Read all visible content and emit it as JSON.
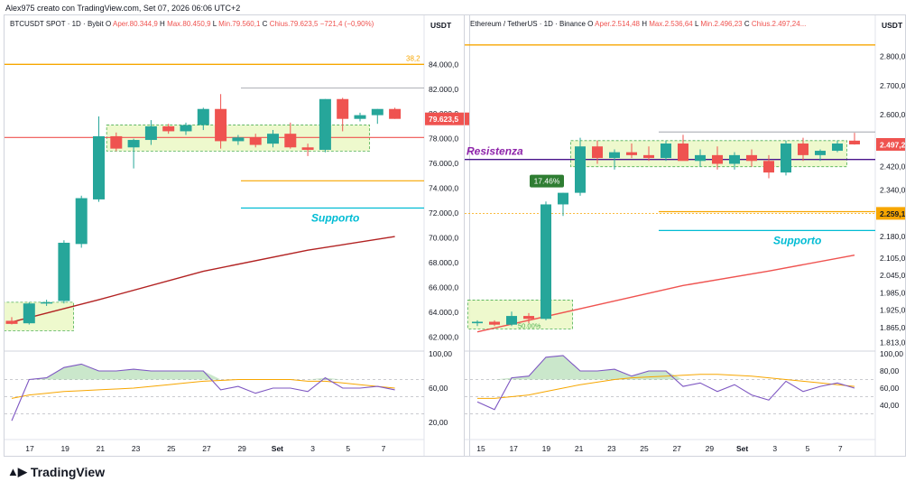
{
  "author_line": "Alex975 creato con TradingView.com, Set 07, 2026 06:06 UTC+2",
  "brand": "TradingView",
  "colors": {
    "up": "#26a69a",
    "down": "#ef5350",
    "ma": "#b22222",
    "ma2": "#ef5350",
    "orange": "#f7a600",
    "cyan": "#00bcd4",
    "rsi": "#7e57c2",
    "rsi_ma": "#f7a600",
    "zone": "#eaf7c0",
    "zone_border": "#4caf50"
  },
  "charts": [
    {
      "id": "btc",
      "legend": {
        "symbol": "BTCUSDT SPOT · 1D · Bybit",
        "o_label": "O",
        "o": "Aper.80.344,9",
        "h_label": "H",
        "h": "Max.80.450,9",
        "l_label": "L",
        "l": "Min.79.560,1",
        "c_label": "C",
        "c": "Chius.79.623,5",
        "chg": "−721,4 (−0,90%)"
      },
      "currency": "USDT",
      "price_ticks": [
        "84.000,0",
        "82.000,0",
        "80.000,0",
        "78.000,0",
        "76.000,0",
        "74.000,0",
        "72.000,0",
        "70.000,0",
        "68.000,0",
        "66.000,0",
        "64.000,0",
        "62.000,0"
      ],
      "price_tag": "79.623,5",
      "orange_label": "38,2",
      "support_label": "Supporto",
      "rsi_ticks": [
        "100,00",
        "60,00",
        "20,00"
      ],
      "x_ticks": [
        "17",
        "19",
        "21",
        "23",
        "25",
        "27",
        "29",
        "Set",
        "3",
        "5",
        "7"
      ],
      "chart_data": {
        "type": "candlestick",
        "ylim": [
          61000,
          86500
        ],
        "candles": [
          {
            "o": 63300,
            "h": 63600,
            "l": 63000,
            "c": 63050
          },
          {
            "o": 63100,
            "h": 64800,
            "l": 63000,
            "c": 64700
          },
          {
            "o": 64700,
            "h": 65000,
            "l": 64500,
            "c": 64800
          },
          {
            "o": 64900,
            "h": 69800,
            "l": 64700,
            "c": 69600
          },
          {
            "o": 69500,
            "h": 73400,
            "l": 69200,
            "c": 73200
          },
          {
            "o": 73100,
            "h": 79800,
            "l": 72900,
            "c": 78200
          },
          {
            "o": 78200,
            "h": 78500,
            "l": 77000,
            "c": 77200
          },
          {
            "o": 77300,
            "h": 78000,
            "l": 75600,
            "c": 77900
          },
          {
            "o": 77900,
            "h": 79500,
            "l": 77500,
            "c": 79000
          },
          {
            "o": 79000,
            "h": 79200,
            "l": 78400,
            "c": 78600
          },
          {
            "o": 78600,
            "h": 79300,
            "l": 78300,
            "c": 79100
          },
          {
            "o": 79100,
            "h": 80500,
            "l": 78700,
            "c": 80400
          },
          {
            "o": 80400,
            "h": 81600,
            "l": 77200,
            "c": 77800
          },
          {
            "o": 77800,
            "h": 78300,
            "l": 77500,
            "c": 78100
          },
          {
            "o": 78100,
            "h": 78400,
            "l": 77300,
            "c": 77500
          },
          {
            "o": 77600,
            "h": 78700,
            "l": 77300,
            "c": 78400
          },
          {
            "o": 78400,
            "h": 79300,
            "l": 77200,
            "c": 77300
          },
          {
            "o": 77300,
            "h": 77600,
            "l": 76600,
            "c": 77100
          },
          {
            "o": 77100,
            "h": 81200,
            "l": 76900,
            "c": 81200
          },
          {
            "o": 81200,
            "h": 81300,
            "l": 78600,
            "c": 79600
          },
          {
            "o": 79600,
            "h": 80100,
            "l": 79400,
            "c": 79900
          },
          {
            "o": 79900,
            "h": 80400,
            "l": 79200,
            "c": 80400
          },
          {
            "o": 80400,
            "h": 80500,
            "l": 79600,
            "c": 79600
          }
        ],
        "levels": {
          "red": 78100,
          "orange_top": 84000,
          "orange_low": 74600,
          "cyan": 72400,
          "grey": 82100
        },
        "ma": [
          [
            0,
            63200
          ],
          [
            5,
            65000
          ],
          [
            11,
            67300
          ],
          [
            17,
            69000
          ],
          [
            22,
            70100
          ]
        ],
        "zones": [
          {
            "from": 0,
            "to": 3,
            "lo": 62500,
            "hi": 64800
          },
          {
            "from": 6,
            "to": 20,
            "lo": 77000,
            "hi": 79100
          }
        ],
        "rsi": [
          22,
          70,
          72,
          84,
          88,
          80,
          80,
          82,
          80,
          80,
          80,
          80,
          58,
          62,
          54,
          60,
          60,
          56,
          72,
          60,
          60,
          62,
          58
        ],
        "rsi_ma": [
          48,
          52,
          54,
          56,
          57,
          58,
          59,
          60,
          62,
          64,
          66,
          68,
          69,
          70,
          70,
          70,
          70,
          68,
          68,
          66,
          64,
          62,
          60
        ]
      }
    },
    {
      "id": "eth",
      "legend": {
        "symbol": "Ethereum / TetherUS · 1D · Binance",
        "o_label": "O",
        "o": "Aper.2.514,48",
        "h_label": "H",
        "h": "Max.2.536,64",
        "l_label": "L",
        "l": "Min.2.496,23",
        "c_label": "C",
        "c": "Chius.2.497,24..."
      },
      "currency": "USDT",
      "price_ticks": [
        "2.800,00",
        "2.700,00",
        "2.600,00",
        "2.500,00",
        "2.420,00",
        "2.340,00",
        "2.260,00",
        "2.180,00",
        "2.105,00",
        "2.045,00",
        "1.985,00",
        "1.925,00",
        "1.865,00",
        "1.813,00"
      ],
      "price_tag": "2.497,24",
      "price_tag2": "2.259,14",
      "resistance_label": "Resistenza",
      "support_label": "Supporto",
      "pct_label": "17.46%",
      "fib_label": "50.00%",
      "rsi_ticks": [
        "100,00",
        "80,00",
        "60,00",
        "40,00"
      ],
      "x_ticks": [
        "15",
        "17",
        "19",
        "21",
        "23",
        "25",
        "27",
        "29",
        "Set",
        "3",
        "5",
        "7"
      ],
      "chart_data": {
        "type": "candlestick",
        "ylim": [
          1790,
          2880
        ],
        "candles": [
          {
            "o": 1880,
            "h": 1890,
            "l": 1870,
            "c": 1885
          },
          {
            "o": 1885,
            "h": 1890,
            "l": 1870,
            "c": 1875
          },
          {
            "o": 1875,
            "h": 1920,
            "l": 1870,
            "c": 1905
          },
          {
            "o": 1905,
            "h": 1915,
            "l": 1880,
            "c": 1895
          },
          {
            "o": 1895,
            "h": 2300,
            "l": 1890,
            "c": 2290
          },
          {
            "o": 2290,
            "h": 2330,
            "l": 2250,
            "c": 2330
          },
          {
            "o": 2330,
            "h": 2520,
            "l": 2320,
            "c": 2490
          },
          {
            "o": 2490,
            "h": 2510,
            "l": 2430,
            "c": 2450
          },
          {
            "o": 2450,
            "h": 2480,
            "l": 2410,
            "c": 2470
          },
          {
            "o": 2470,
            "h": 2500,
            "l": 2450,
            "c": 2460
          },
          {
            "o": 2460,
            "h": 2490,
            "l": 2440,
            "c": 2450
          },
          {
            "o": 2450,
            "h": 2510,
            "l": 2440,
            "c": 2500
          },
          {
            "o": 2500,
            "h": 2530,
            "l": 2450,
            "c": 2440
          },
          {
            "o": 2440,
            "h": 2480,
            "l": 2420,
            "c": 2460
          },
          {
            "o": 2460,
            "h": 2490,
            "l": 2410,
            "c": 2430
          },
          {
            "o": 2430,
            "h": 2470,
            "l": 2410,
            "c": 2460
          },
          {
            "o": 2460,
            "h": 2480,
            "l": 2420,
            "c": 2440
          },
          {
            "o": 2440,
            "h": 2460,
            "l": 2380,
            "c": 2400
          },
          {
            "o": 2400,
            "h": 2510,
            "l": 2390,
            "c": 2500
          },
          {
            "o": 2500,
            "h": 2520,
            "l": 2440,
            "c": 2460
          },
          {
            "o": 2460,
            "h": 2480,
            "l": 2440,
            "c": 2475
          },
          {
            "o": 2475,
            "h": 2510,
            "l": 2470,
            "c": 2500
          },
          {
            "o": 2510,
            "h": 2537,
            "l": 2496,
            "c": 2497
          }
        ],
        "levels": {
          "purple": 2445,
          "orange_top": 2840,
          "orange_low": 2265,
          "cyan": 2200,
          "grey": 2540,
          "dash": 2259
        },
        "ma": [
          [
            0,
            1850
          ],
          [
            6,
            1930
          ],
          [
            12,
            2010
          ],
          [
            17,
            2060
          ],
          [
            22,
            2115
          ]
        ],
        "zones": [
          {
            "from": 0,
            "to": 5,
            "lo": 1860,
            "hi": 1960
          },
          {
            "from": 6,
            "to": 21,
            "lo": 2420,
            "hi": 2510
          }
        ],
        "rsi": [
          44,
          35,
          72,
          74,
          96,
          98,
          80,
          80,
          82,
          74,
          80,
          80,
          62,
          66,
          56,
          64,
          52,
          46,
          68,
          56,
          62,
          66,
          60
        ],
        "rsi_ma": [
          48,
          48,
          50,
          52,
          56,
          60,
          64,
          67,
          70,
          72,
          73,
          74,
          75,
          76,
          76,
          75,
          74,
          72,
          70,
          68,
          66,
          64,
          62
        ]
      }
    }
  ]
}
